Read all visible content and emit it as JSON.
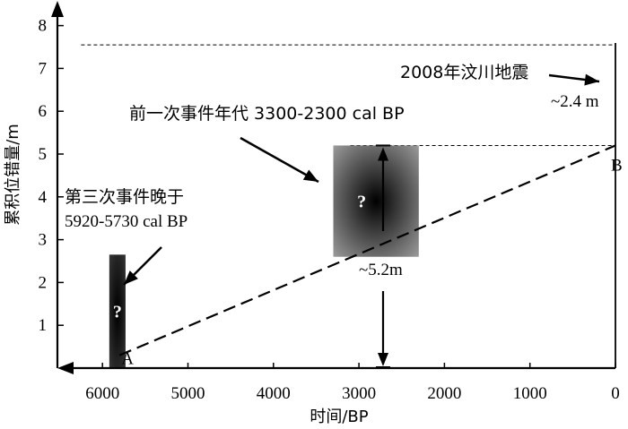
{
  "chart_data": {
    "type": "line",
    "xlabel": "时间/BP",
    "ylabel": "累积位错量/m",
    "xlim": [
      6400,
      0
    ],
    "ylim": [
      0,
      8.3
    ],
    "x_ticks": [
      6000,
      5000,
      4000,
      3000,
      2000,
      1000,
      0
    ],
    "y_ticks": [
      1,
      2,
      3,
      4,
      5,
      6,
      7,
      8
    ],
    "series": [
      {
        "style": "dashed",
        "x": [
          5800,
          0
        ],
        "y": [
          0.3,
          5.2
        ]
      }
    ],
    "reference_lines": [
      {
        "style": "dashed-thin",
        "y": 7.55,
        "x_range": [
          6250,
          0
        ]
      },
      {
        "style": "dashed-thin",
        "y": 5.2,
        "x_range": [
          3100,
          0
        ]
      }
    ],
    "event_boxes": [
      {
        "name": "third",
        "x_range": [
          5920,
          5730
        ],
        "y_range": [
          0,
          2.65
        ],
        "question": "?"
      },
      {
        "name": "previous",
        "x_range": [
          3300,
          2300
        ],
        "y_range": [
          2.6,
          5.2
        ],
        "question": "?"
      }
    ],
    "points": [
      {
        "label": "A",
        "x": 5800,
        "y": 0.3
      },
      {
        "label": "B",
        "x": 0,
        "y": 5.2
      }
    ],
    "annotations": {
      "third_event": [
        "第三次事件晚于",
        "5920-5730 cal BP"
      ],
      "previous_event": "前一次事件年代 3300-2300 cal BP",
      "wenchuan": "2008年汶川地震",
      "wenchuan_offset": "~2.4 m",
      "cumulative_offset": "~5.2m"
    }
  }
}
